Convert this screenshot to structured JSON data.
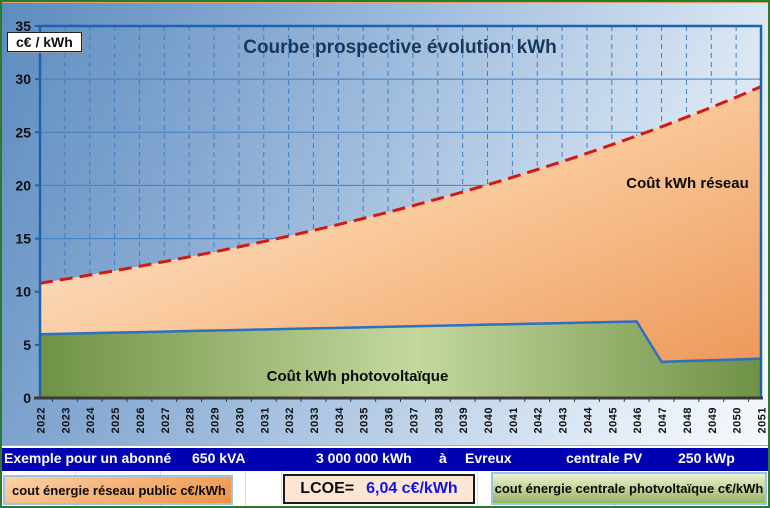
{
  "chart": {
    "title": "Courbe prospective évolution kWh",
    "y_unit_label": "c€ / kWh",
    "area_label_reseau": "Coût kWh réseau",
    "area_label_pv": "Coût kWh photovoltaïque",
    "colors": {
      "reseau_line": "#d21a12",
      "pv_line": "#2f6fc0",
      "plot_border": "#1e62ae",
      "grid": "#3f7fc1",
      "axis": "#3a3a3a"
    }
  },
  "chart_data": {
    "type": "area",
    "title": "Courbe prospective évolution kWh",
    "ylabel": "c€ / kWh",
    "ylim": [
      0,
      35
    ],
    "y_ticks": [
      0,
      5,
      10,
      15,
      20,
      25,
      30,
      35
    ],
    "grid": true,
    "x": [
      2022,
      2023,
      2024,
      2025,
      2026,
      2027,
      2028,
      2029,
      2030,
      2031,
      2032,
      2033,
      2034,
      2035,
      2036,
      2037,
      2038,
      2039,
      2040,
      2041,
      2042,
      2043,
      2044,
      2045,
      2046,
      2047,
      2048,
      2049,
      2050,
      2051
    ],
    "series": [
      {
        "name": "cout énergie réseau public c€/kWh",
        "style": "orange area, red dashed top line",
        "values": [
          10.8,
          11.18,
          11.57,
          11.97,
          12.39,
          12.83,
          13.28,
          13.74,
          14.22,
          14.72,
          15.23,
          15.77,
          16.32,
          16.89,
          17.48,
          18.09,
          18.73,
          19.38,
          20.06,
          20.76,
          21.49,
          22.24,
          23.02,
          23.83,
          24.66,
          25.52,
          26.42,
          27.34,
          28.3,
          29.29
        ]
      },
      {
        "name": "cout énergie centrale photvoltaïque c€/kWh",
        "style": "green area, blue solid top line",
        "values": [
          6.0,
          6.05,
          6.1,
          6.15,
          6.2,
          6.25,
          6.3,
          6.35,
          6.4,
          6.45,
          6.5,
          6.55,
          6.6,
          6.65,
          6.7,
          6.75,
          6.8,
          6.85,
          6.9,
          6.95,
          7.0,
          7.05,
          7.1,
          7.15,
          7.2,
          3.4,
          3.48,
          3.55,
          3.62,
          3.7
        ]
      }
    ]
  },
  "banner": {
    "items": [
      "Exemple pour un abonné",
      "650 kVA",
      "3 000 000 kWh",
      "à",
      "Evreux",
      "centrale PV",
      "250 kWp"
    ]
  },
  "footer": {
    "legend_reseau": "cout énergie réseau public c€/kWh",
    "lcoe_label": "LCOE=",
    "lcoe_value": "6,04 c€/kWh",
    "legend_pv": "cout énergie centrale photvoltaïque c€/kWh"
  }
}
